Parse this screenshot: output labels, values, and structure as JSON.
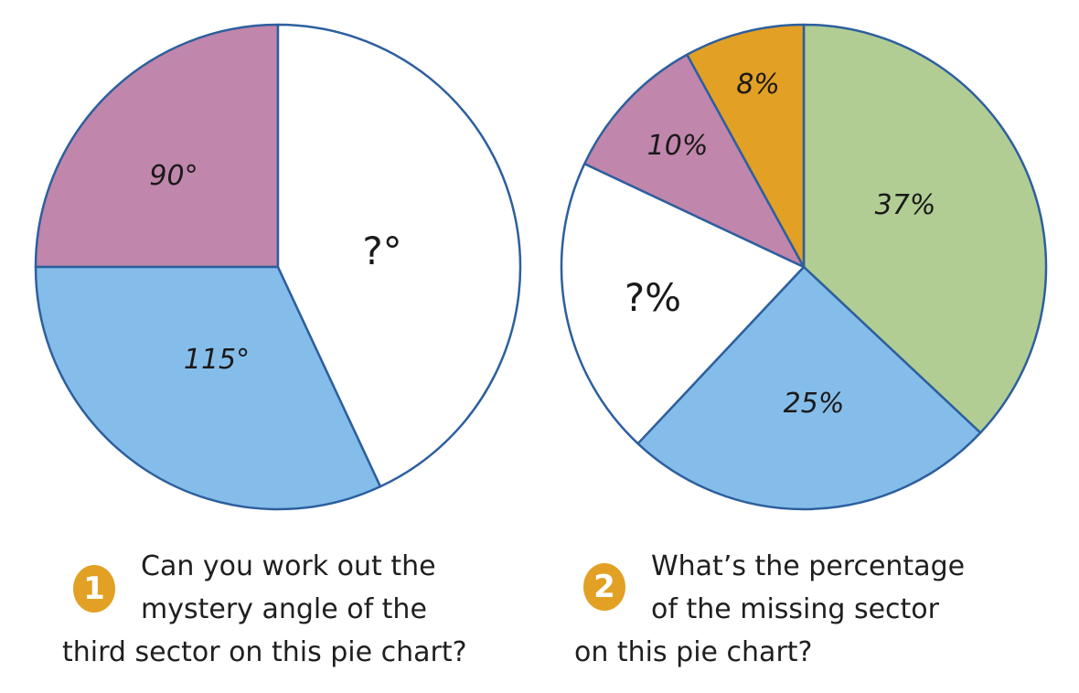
{
  "colors": {
    "stroke": "#2d5f9e",
    "badge": "#e2a024"
  },
  "chart_data": [
    {
      "type": "pie",
      "start_angle_deg": 0,
      "direction": "counterclockwise",
      "slices": [
        {
          "label": "90°",
          "value": 90,
          "color": "#c186ab",
          "style": "italic"
        },
        {
          "label": "115°",
          "value": 115,
          "color": "#85bdea",
          "style": "italic"
        },
        {
          "label": "?°",
          "value": 155,
          "color": "#ffffff",
          "style": "mystery"
        }
      ]
    },
    {
      "type": "pie",
      "start_angle_deg": 0,
      "direction": "clockwise",
      "slices": [
        {
          "label": "37%",
          "value": 37,
          "color": "#b1cd93",
          "style": "italic"
        },
        {
          "label": "25%",
          "value": 25,
          "color": "#85bdea",
          "style": "italic"
        },
        {
          "label": "?%",
          "value": 20,
          "color": "#ffffff",
          "style": "mystery"
        },
        {
          "label": "10%",
          "value": 10,
          "color": "#c186ab",
          "style": "italic"
        },
        {
          "label": "8%",
          "value": 8,
          "color": "#e2a024",
          "style": "italic"
        }
      ]
    }
  ],
  "questions": [
    {
      "number": "1",
      "lines": [
        "Can you work out the",
        "mystery angle of the",
        "third sector on this pie chart?"
      ]
    },
    {
      "number": "2",
      "lines": [
        "What’s the percentage",
        "of the missing sector",
        "on this pie chart?"
      ]
    }
  ]
}
